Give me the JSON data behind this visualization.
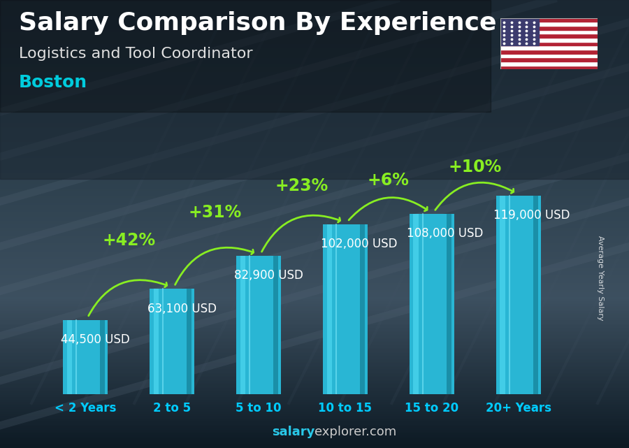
{
  "title": "Salary Comparison By Experience",
  "subtitle": "Logistics and Tool Coordinator",
  "city": "Boston",
  "ylabel": "Average Yearly Salary",
  "footer_bold": "salary",
  "footer_normal": "explorer.com",
  "categories": [
    "< 2 Years",
    "2 to 5",
    "5 to 10",
    "10 to 15",
    "15 to 20",
    "20+ Years"
  ],
  "values": [
    44500,
    63100,
    82900,
    102000,
    108000,
    119000
  ],
  "labels": [
    "44,500 USD",
    "63,100 USD",
    "82,900 USD",
    "102,000 USD",
    "108,000 USD",
    "119,000 USD"
  ],
  "pct_labels": [
    "+42%",
    "+31%",
    "+23%",
    "+6%",
    "+10%"
  ],
  "bar_color_top": "#4dd8f0",
  "bar_color_mid": "#29b6d4",
  "bar_color_side": "#1a8fa8",
  "pct_color": "#88ee22",
  "title_color": "#ffffff",
  "subtitle_color": "#e0e0e0",
  "city_color": "#00ccdd",
  "label_color": "#ffffff",
  "cat_color": "#00ccff",
  "bg_top": "#4a5f6a",
  "bg_bottom": "#1a2530",
  "ylim": [
    0,
    145000
  ],
  "title_fontsize": 26,
  "subtitle_fontsize": 16,
  "city_fontsize": 18,
  "label_fontsize": 12,
  "pct_fontsize": 17,
  "cat_fontsize": 12,
  "ylabel_fontsize": 8,
  "footer_fontsize": 13
}
